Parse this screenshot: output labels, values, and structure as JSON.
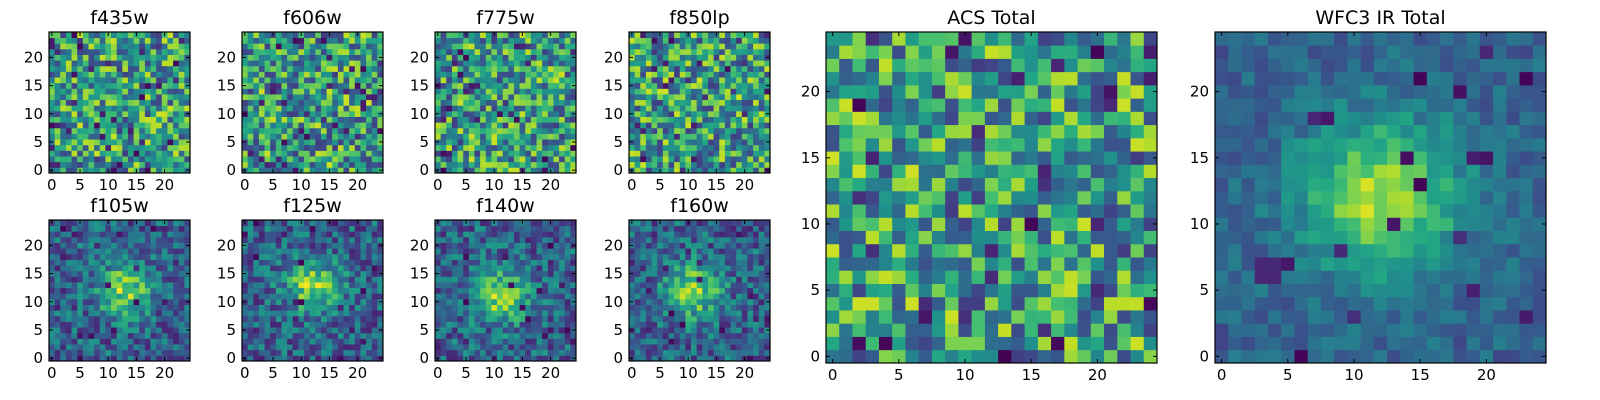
{
  "figure": {
    "colormap": "viridis",
    "panel_count": 10
  },
  "chart_data": [
    {
      "type": "heatmap",
      "title": "f435w",
      "x_range": [
        0,
        24
      ],
      "y_range": [
        0,
        24
      ],
      "origin": "lower",
      "xticks": [
        "0",
        "5",
        "10",
        "15",
        "20"
      ],
      "yticks": [
        "0",
        "5",
        "10",
        "15",
        "20"
      ],
      "pattern": "noise",
      "seed": 11
    },
    {
      "type": "heatmap",
      "title": "f606w",
      "x_range": [
        0,
        24
      ],
      "y_range": [
        0,
        24
      ],
      "origin": "lower",
      "xticks": [
        "0",
        "5",
        "10",
        "15",
        "20"
      ],
      "yticks": [
        "0",
        "5",
        "10",
        "15",
        "20"
      ],
      "pattern": "noise",
      "seed": 23
    },
    {
      "type": "heatmap",
      "title": "f775w",
      "x_range": [
        0,
        24
      ],
      "y_range": [
        0,
        24
      ],
      "origin": "lower",
      "xticks": [
        "0",
        "5",
        "10",
        "15",
        "20"
      ],
      "yticks": [
        "0",
        "5",
        "10",
        "15",
        "20"
      ],
      "pattern": "noise",
      "seed": 37
    },
    {
      "type": "heatmap",
      "title": "f850lp",
      "x_range": [
        0,
        24
      ],
      "y_range": [
        0,
        24
      ],
      "origin": "lower",
      "xticks": [
        "0",
        "5",
        "10",
        "15",
        "20"
      ],
      "yticks": [
        "0",
        "5",
        "10",
        "15",
        "20"
      ],
      "pattern": "noise",
      "seed": 41
    },
    {
      "type": "heatmap",
      "title": "f105w",
      "x_range": [
        0,
        24
      ],
      "y_range": [
        0,
        24
      ],
      "origin": "lower",
      "xticks": [
        "0",
        "5",
        "10",
        "15",
        "20"
      ],
      "yticks": [
        "0",
        "5",
        "10",
        "15",
        "20"
      ],
      "pattern": "blob",
      "peak": [
        13,
        12
      ],
      "seed": 53
    },
    {
      "type": "heatmap",
      "title": "f125w",
      "x_range": [
        0,
        24
      ],
      "y_range": [
        0,
        24
      ],
      "origin": "lower",
      "xticks": [
        "0",
        "5",
        "10",
        "15",
        "20"
      ],
      "yticks": [
        "0",
        "5",
        "10",
        "15",
        "20"
      ],
      "pattern": "blob",
      "peak": [
        12,
        13
      ],
      "seed": 67
    },
    {
      "type": "heatmap",
      "title": "f140w",
      "x_range": [
        0,
        24
      ],
      "y_range": [
        0,
        24
      ],
      "origin": "lower",
      "xticks": [
        "0",
        "5",
        "10",
        "15",
        "20"
      ],
      "yticks": [
        "0",
        "5",
        "10",
        "15",
        "20"
      ],
      "pattern": "blob",
      "peak": [
        11,
        11
      ],
      "seed": 79
    },
    {
      "type": "heatmap",
      "title": "f160w",
      "x_range": [
        0,
        24
      ],
      "y_range": [
        0,
        24
      ],
      "origin": "lower",
      "xticks": [
        "0",
        "5",
        "10",
        "15",
        "20"
      ],
      "yticks": [
        "0",
        "5",
        "10",
        "15",
        "20"
      ],
      "pattern": "blob",
      "peak": [
        11,
        12
      ],
      "seed": 83
    },
    {
      "type": "heatmap",
      "title": "ACS Total",
      "x_range": [
        0,
        24
      ],
      "y_range": [
        0,
        24
      ],
      "origin": "lower",
      "xticks": [
        "0",
        "5",
        "10",
        "15",
        "20"
      ],
      "yticks": [
        "0",
        "5",
        "10",
        "15",
        "20"
      ],
      "pattern": "noise",
      "seed": 97
    },
    {
      "type": "heatmap",
      "title": "WFC3 IR Total",
      "x_range": [
        0,
        24
      ],
      "y_range": [
        0,
        24
      ],
      "origin": "lower",
      "xticks": [
        "0",
        "5",
        "10",
        "15",
        "20"
      ],
      "yticks": [
        "0",
        "5",
        "10",
        "15",
        "20"
      ],
      "pattern": "smooth-blob",
      "peak": [
        12,
        12
      ],
      "seed": 101
    }
  ]
}
